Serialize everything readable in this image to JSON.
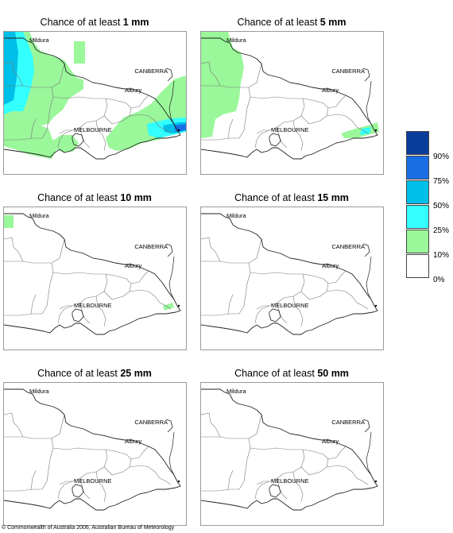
{
  "panels": [
    {
      "title_prefix": "Chance of at least ",
      "amount": "1 mm",
      "level": 0
    },
    {
      "title_prefix": "Chance of at least ",
      "amount": "5 mm",
      "level": 1
    },
    {
      "title_prefix": "Chance of at least ",
      "amount": "10 mm",
      "level": 2
    },
    {
      "title_prefix": "Chance of at least ",
      "amount": "15 mm",
      "level": 3
    },
    {
      "title_prefix": "Chance of at least ",
      "amount": "25 mm",
      "level": 3
    },
    {
      "title_prefix": "Chance of at least ",
      "amount": "50 mm",
      "level": 3
    }
  ],
  "places": {
    "mildura": "Mildura",
    "canberra": "CANBERRA",
    "albury": "Albury",
    "melbourne": "MELBOURNE"
  },
  "legend": {
    "labels": [
      "90%",
      "75%",
      "50%",
      "25%",
      "10%",
      "0%"
    ],
    "colors": [
      "#0a3c9c",
      "#1a6fe6",
      "#00bfe8",
      "#33ffff",
      "#9af79a",
      "#ffffff"
    ]
  },
  "copyright": "© Commonwealth of Australia 2006, Australian Bureau of Meteorology"
}
